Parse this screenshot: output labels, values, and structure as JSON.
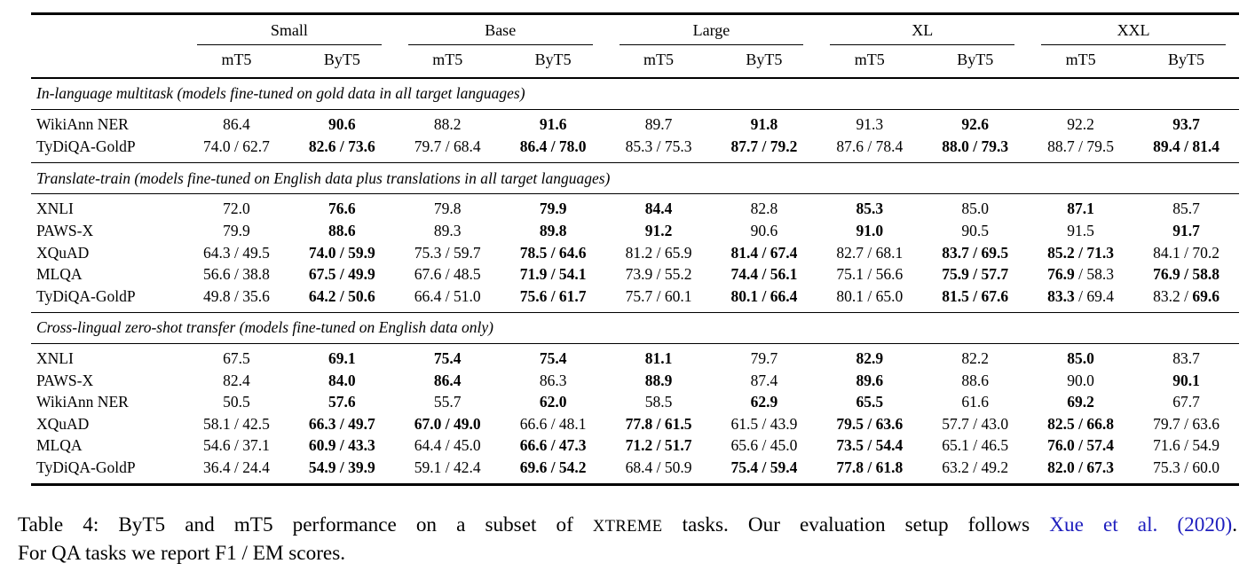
{
  "colors": {
    "citation_link": "#1e1ebe",
    "rule": "#000000",
    "background": "#ffffff"
  },
  "table": {
    "size_groups": [
      "Small",
      "Base",
      "Large",
      "XL",
      "XXL"
    ],
    "model_columns": [
      "mT5",
      "ByT5"
    ],
    "sections": [
      {
        "header": "In-language multitask (models fine-tuned on gold data in all target languages)",
        "rows": [
          {
            "task": "WikiAnn NER",
            "cells": [
              "86.4",
              "**90.6**",
              "88.2",
              "**91.6**",
              "89.7",
              "**91.8**",
              "91.3",
              "**92.6**",
              "92.2",
              "**93.7**"
            ]
          },
          {
            "task": "TyDiQA-GoldP",
            "cells": [
              "74.0 / 62.7",
              "**82.6 / 73.6**",
              "79.7 / 68.4",
              "**86.4 / 78.0**",
              "85.3 / 75.3",
              "**87.7 / 79.2**",
              "87.6 / 78.4",
              "**88.0 / 79.3**",
              "88.7 / 79.5",
              "**89.4 / 81.4**"
            ]
          }
        ]
      },
      {
        "header": "Translate-train (models fine-tuned on English data plus translations in all target languages)",
        "rows": [
          {
            "task": "XNLI",
            "cells": [
              "72.0",
              "**76.6**",
              "79.8",
              "**79.9**",
              "**84.4**",
              "82.8",
              "**85.3**",
              "85.0",
              "**87.1**",
              "85.7"
            ]
          },
          {
            "task": "PAWS-X",
            "cells": [
              "79.9",
              "**88.6**",
              "89.3",
              "**89.8**",
              "**91.2**",
              "90.6",
              "**91.0**",
              "90.5",
              "91.5",
              "**91.7**"
            ]
          },
          {
            "task": "XQuAD",
            "cells": [
              "64.3 / 49.5",
              "**74.0 / 59.9**",
              "75.3 / 59.7",
              "**78.5 / 64.6**",
              "81.2 / 65.9",
              "**81.4 / 67.4**",
              "82.7 / 68.1",
              "**83.7 / 69.5**",
              "**85.2 / 71.3**",
              "84.1 / 70.2"
            ]
          },
          {
            "task": "MLQA",
            "cells": [
              "56.6 / 38.8",
              "**67.5 / 49.9**",
              "67.6 / 48.5",
              "**71.9 / 54.1**",
              "73.9 / 55.2",
              "**74.4 / 56.1**",
              "75.1 / 56.6",
              "**75.9 / 57.7**",
              "**76.9** / 58.3",
              "**76.9 / 58.8**"
            ]
          },
          {
            "task": "TyDiQA-GoldP",
            "cells": [
              "49.8 / 35.6",
              "**64.2 / 50.6**",
              "66.4 / 51.0",
              "**75.6 / 61.7**",
              "75.7 / 60.1",
              "**80.1 / 66.4**",
              "80.1 / 65.0",
              "**81.5 / 67.6**",
              "**83.3** / 69.4",
              "83.2 / **69.6**"
            ]
          }
        ]
      },
      {
        "header": "Cross-lingual zero-shot transfer (models fine-tuned on English data only)",
        "rows": [
          {
            "task": "XNLI",
            "cells": [
              "67.5",
              "**69.1**",
              "**75.4**",
              "**75.4**",
              "**81.1**",
              "79.7",
              "**82.9**",
              "82.2",
              "**85.0**",
              "83.7"
            ]
          },
          {
            "task": "PAWS-X",
            "cells": [
              "82.4",
              "**84.0**",
              "**86.4**",
              "86.3",
              "**88.9**",
              "87.4",
              "**89.6**",
              "88.6",
              "90.0",
              "**90.1**"
            ]
          },
          {
            "task": "WikiAnn NER",
            "cells": [
              "50.5",
              "**57.6**",
              "55.7",
              "**62.0**",
              "58.5",
              "**62.9**",
              "**65.5**",
              "61.6",
              "**69.2**",
              "67.7"
            ]
          },
          {
            "task": "XQuAD",
            "cells": [
              "58.1 / 42.5",
              "**66.3 / 49.7**",
              "**67.0 / 49.0**",
              "66.6 / 48.1",
              "**77.8 / 61.5**",
              "61.5 / 43.9",
              "**79.5 / 63.6**",
              "57.7 / 43.0",
              "**82.5 / 66.8**",
              "79.7 / 63.6"
            ]
          },
          {
            "task": "MLQA",
            "cells": [
              "54.6 / 37.1",
              "**60.9 / 43.3**",
              "64.4 / 45.0",
              "**66.6 / 47.3**",
              "**71.2 / 51.7**",
              "65.6 / 45.0",
              "**73.5 / 54.4**",
              "65.1 / 46.5",
              "**76.0 / 57.4**",
              "71.6 / 54.9"
            ]
          },
          {
            "task": "TyDiQA-GoldP",
            "cells": [
              "36.4 / 24.4",
              "**54.9 / 39.9**",
              "59.1 / 42.4",
              "**69.6 / 54.2**",
              "68.4 / 50.9",
              "**75.4 / 59.4**",
              "**77.8 / 61.8**",
              "63.2 / 49.2",
              "**82.0 / 67.3**",
              "75.3 / 60.0"
            ]
          }
        ]
      }
    ]
  },
  "caption": {
    "lines": [
      {
        "justify": true,
        "segments": [
          {
            "text": "Table 4: ByT5 and mT5 performance on a subset of ",
            "style": "normal"
          },
          {
            "text": "XTREME",
            "style": "smallcaps"
          },
          {
            "text": " tasks. Our evaluation setup follows ",
            "style": "normal"
          },
          {
            "text": "Xue et al.",
            "style": "link"
          },
          {
            "text": " ",
            "style": "normal"
          },
          {
            "text": "(2020)",
            "style": "link"
          },
          {
            "text": ".",
            "style": "normal"
          }
        ]
      },
      {
        "justify": false,
        "segments": [
          {
            "text": "For QA tasks we report F1 / EM scores.",
            "style": "normal"
          }
        ]
      }
    ]
  }
}
